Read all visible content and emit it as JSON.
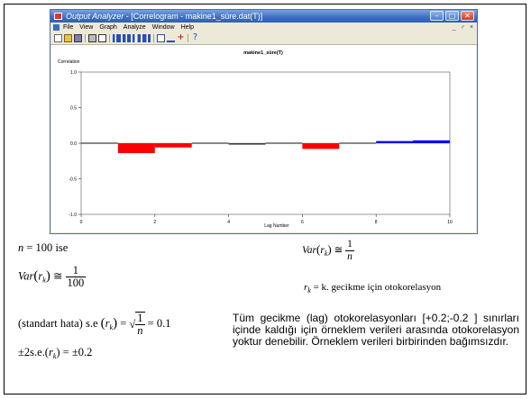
{
  "window": {
    "title_app": "Output Analyzer",
    "title_rest": " - [Correlogram - makine1_süre.dat(T)]",
    "controls": [
      "–",
      "□",
      "✕"
    ],
    "menu": [
      "File",
      "View",
      "Graph",
      "Analyze",
      "Window",
      "Help"
    ],
    "mdi_controls": [
      "_",
      "♂",
      "×"
    ],
    "toolbar_icons": [
      "new-icon",
      "open-icon",
      "save-icon",
      "print-icon",
      "preview-icon",
      "bar-chart-icon",
      "chart2-icon",
      "chart3-icon",
      "chart4-icon",
      "table-icon",
      "line-icon",
      "plus-icon",
      "help-pointer-icon"
    ]
  },
  "chart_data": {
    "type": "bar",
    "title": "makine1_süre(T)",
    "ylabel": "Correlation",
    "xlabel": "Lag Number",
    "ylim": [
      -1.0,
      1.0
    ],
    "xlim": [
      0,
      10
    ],
    "yticks": [
      "1.0",
      "0.5",
      "0.0",
      "-0.5",
      "-1.0"
    ],
    "xticks": [
      "0",
      "2",
      "4",
      "6",
      "8",
      "10"
    ],
    "lags": [
      1,
      2,
      3,
      4,
      5,
      6,
      7,
      8,
      9,
      10
    ],
    "values": [
      -0.01,
      -0.14,
      -0.06,
      -0.01,
      -0.02,
      -0.01,
      -0.08,
      -0.01,
      0.03,
      0.04
    ],
    "colors": {
      "negative": "#ff0000",
      "positive": "#0000ff",
      "small": "#3a3a3a"
    }
  },
  "formulas": {
    "n_line": {
      "var": "n",
      "eq": " = 100 ",
      "word": "ise"
    },
    "var_left": {
      "lhs": "Var",
      "r": "r",
      "k": "k",
      "num": "1",
      "den": "100"
    },
    "stderr": {
      "label": "(standart hata) s.e ",
      "r": "r",
      "k": "k",
      "num": "1",
      "den": "n",
      "result": " = 0.1"
    },
    "pm_line": {
      "text": "±2s.e.(",
      "r": "r",
      "k": "k",
      "tail": ") = ±0.2"
    },
    "var_right": {
      "lhs": "Var",
      "r": "r",
      "k": "k",
      "num": "1",
      "den": "n"
    },
    "rk_def": {
      "r": "r",
      "k": "k",
      "text": " = k. gecikme için otokorelasyon"
    }
  },
  "paragraph": "Tüm gecikme (lag) otokorelasyonları [+0.2;-0.2 ] sınırları içinde kaldığı için örneklem verileri arasında otokorelasyon yoktur denebilir. Örneklem verileri birbirinden bağımsızdır."
}
